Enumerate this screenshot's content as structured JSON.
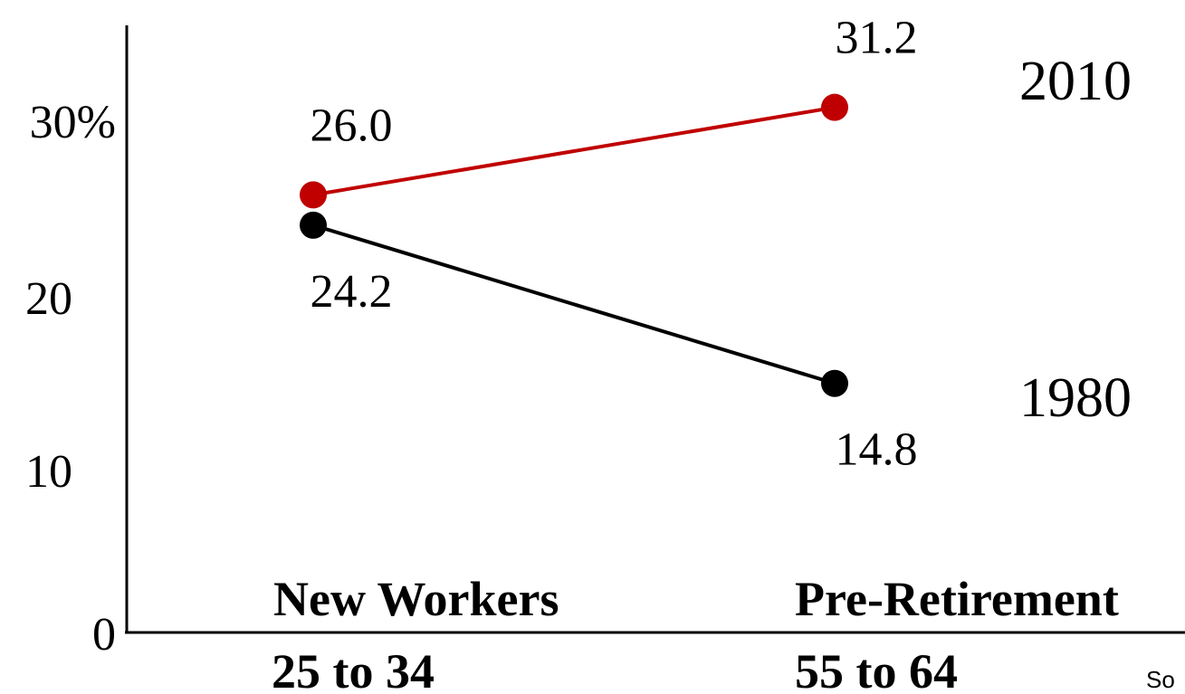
{
  "chart_data": {
    "type": "line",
    "categories": [
      "25 to 34",
      "55 to 64"
    ],
    "category_titles": [
      "New Workers",
      "Pre-Retirement"
    ],
    "y_tick_labels": [
      "0",
      "10",
      "20",
      "30%"
    ],
    "y_ticks": [
      0,
      10,
      20,
      30
    ],
    "ylim": [
      0,
      34
    ],
    "grid": false,
    "series": [
      {
        "name": "2010",
        "values": [
          26.0,
          31.2
        ],
        "value_labels": [
          "26.0",
          "31.2"
        ],
        "color": "#c00000"
      },
      {
        "name": "1980",
        "values": [
          24.2,
          14.8
        ],
        "value_labels": [
          "24.2",
          "14.8"
        ],
        "color": "#000000"
      }
    ],
    "source_text": "So"
  }
}
